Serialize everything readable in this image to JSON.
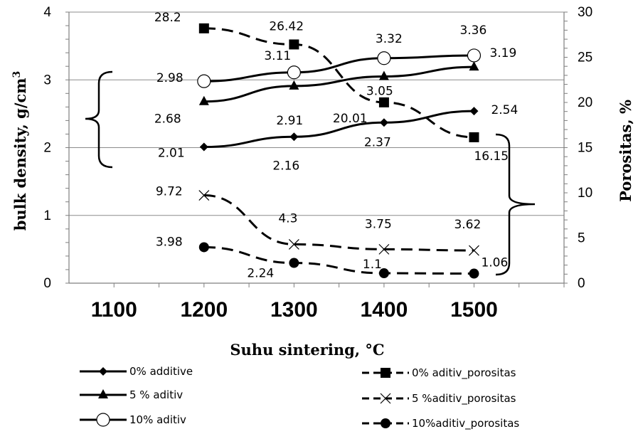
{
  "chart_data": {
    "type": "line",
    "xlabel": "Suhu sintering, °C",
    "ylabel_left": "bulk density, g/cm³",
    "ylabel_right": "Porositas, %",
    "x_ticks": [
      "1100",
      "1200",
      "1300",
      "1400",
      "1500"
    ],
    "y_left_ticks": [
      "0",
      "1",
      "2",
      "3",
      "4"
    ],
    "y_right_ticks": [
      "0",
      "5",
      "10",
      "15",
      "20",
      "25",
      "30"
    ],
    "xlim": [
      1050,
      1600
    ],
    "ylim_left": [
      0,
      4
    ],
    "ylim_right": [
      0,
      30
    ],
    "grid": "horizontal",
    "legend_position": "bottom",
    "x": [
      1200,
      1300,
      1400,
      1500
    ],
    "series": [
      {
        "name": "0% additive",
        "axis": "left",
        "marker": "diamond",
        "dashed": false,
        "values": [
          2.01,
          2.16,
          2.37,
          2.54
        ],
        "labels": [
          "2.01",
          "2.16",
          "2.37",
          "2.54"
        ]
      },
      {
        "name": "5 % aditiv",
        "axis": "left",
        "marker": "triangle",
        "dashed": false,
        "values": [
          2.68,
          2.91,
          3.05,
          3.19
        ],
        "labels": [
          "2.68",
          "2.91",
          "3.05",
          "3.19"
        ]
      },
      {
        "name": "10% aditiv",
        "axis": "left",
        "marker": "circle-open",
        "dashed": false,
        "values": [
          2.98,
          3.11,
          3.32,
          3.36
        ],
        "labels": [
          "2.98",
          "3.11",
          "3.32",
          "3.36"
        ]
      },
      {
        "name": "0% aditiv_porositas",
        "axis": "right",
        "marker": "square",
        "dashed": true,
        "values": [
          28.2,
          26.42,
          20.01,
          16.15
        ],
        "labels": [
          "28.2",
          "26.42",
          "20.01",
          "16.15"
        ]
      },
      {
        "name": "5 %aditiv_porositas",
        "axis": "right",
        "marker": "x",
        "dashed": true,
        "values": [
          9.72,
          4.3,
          3.75,
          3.62
        ],
        "labels": [
          "9.72",
          "4.3",
          "3.75",
          "3.62"
        ]
      },
      {
        "name": "10%aditiv_porositas",
        "axis": "right",
        "marker": "dot",
        "dashed": true,
        "values": [
          3.98,
          2.24,
          1.1,
          1.06
        ],
        "labels": [
          "3.98",
          "2.24",
          "1.1",
          "1.06"
        ]
      }
    ]
  }
}
